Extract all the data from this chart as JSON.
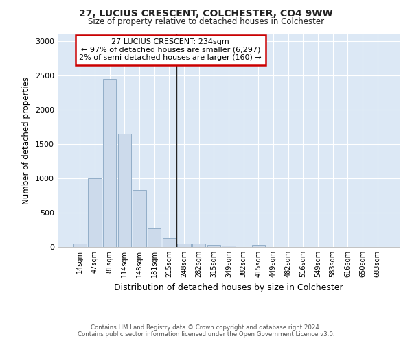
{
  "title": "27, LUCIUS CRESCENT, COLCHESTER, CO4 9WW",
  "subtitle": "Size of property relative to detached houses in Colchester",
  "xlabel": "Distribution of detached houses by size in Colchester",
  "ylabel": "Number of detached properties",
  "footer_line1": "Contains HM Land Registry data © Crown copyright and database right 2024.",
  "footer_line2": "Contains public sector information licensed under the Open Government Licence v3.0.",
  "bar_labels": [
    "14sqm",
    "47sqm",
    "81sqm",
    "114sqm",
    "148sqm",
    "181sqm",
    "215sqm",
    "248sqm",
    "282sqm",
    "315sqm",
    "349sqm",
    "382sqm",
    "415sqm",
    "449sqm",
    "482sqm",
    "516sqm",
    "549sqm",
    "583sqm",
    "616sqm",
    "650sqm",
    "683sqm"
  ],
  "bar_values": [
    55,
    1000,
    2450,
    1650,
    830,
    275,
    130,
    50,
    50,
    35,
    20,
    0,
    30,
    0,
    0,
    0,
    0,
    0,
    0,
    0,
    0
  ],
  "bar_color": "#ccdaeb",
  "bar_edge_color": "#92aec8",
  "vline_color": "#222222",
  "annotation_title": "27 LUCIUS CRESCENT: 234sqm",
  "annotation_line2": "← 97% of detached houses are smaller (6,297)",
  "annotation_line3": "2% of semi-detached houses are larger (160) →",
  "annotation_border_color": "#cc0000",
  "ylim": [
    0,
    3100
  ],
  "yticks": [
    0,
    500,
    1000,
    1500,
    2000,
    2500,
    3000
  ],
  "fig_bg_color": "#ffffff",
  "plot_bg_color": "#dce8f5",
  "grid_color": "#ffffff",
  "figsize": [
    6.0,
    5.0
  ],
  "dpi": 100
}
